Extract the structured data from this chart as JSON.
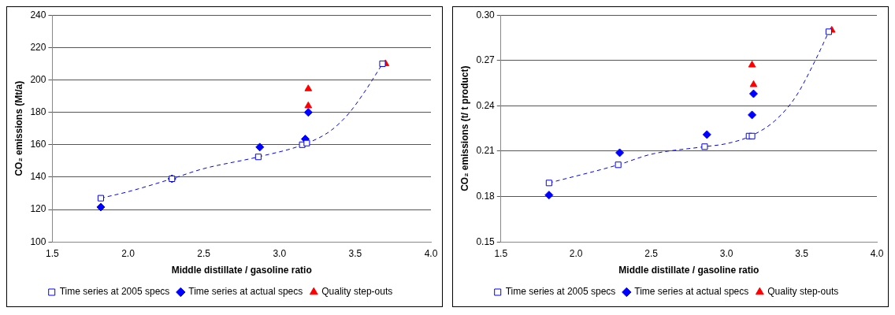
{
  "chart_data": [
    {
      "type": "scatter",
      "xlabel": "Middle distillate / gasoline ratio",
      "ylabel": "CO₂ emissions (Mt/a)",
      "xlim": [
        1.5,
        4.0
      ],
      "xticks": [
        1.5,
        {
          "value": 2,
          "label": "2.0"
        },
        2.5,
        {
          "value": 3,
          "label": "3.0"
        },
        3.5,
        {
          "value": 4,
          "label": "4.0"
        }
      ],
      "ylim": [
        100,
        240
      ],
      "yticks": [
        100,
        120,
        140,
        160,
        180,
        200,
        220,
        240
      ],
      "grid": "y",
      "legend": "bottom",
      "series": [
        {
          "name": "Time series at 2005 specs",
          "color": "#0000ff",
          "marker": "square",
          "x": [
            1.82,
            2.29,
            2.86,
            3.15,
            3.18,
            3.68
          ],
          "values": [
            127,
            139,
            152.5,
            160,
            161,
            210
          ]
        },
        {
          "name": "Time series at actual specs",
          "color": "#0000ff",
          "marker": "diamond",
          "x": [
            1.82,
            2.29,
            2.87,
            3.17,
            3.19
          ],
          "values": [
            121.5,
            139,
            158.5,
            163.5,
            180
          ]
        },
        {
          "name": "Quality step-outs",
          "color": "#ff0000",
          "marker": "triangle",
          "x": [
            3.19,
            3.19,
            3.7
          ],
          "values": [
            194.5,
            184,
            210
          ]
        },
        {
          "type": "line",
          "color": "#0000ff",
          "marker": "none",
          "line_style": "dashed",
          "x": [
            1.82,
            2.0,
            2.29,
            2.49,
            2.86,
            3.17,
            3.34,
            3.46,
            3.57,
            3.68
          ],
          "values": [
            127,
            131,
            139,
            145,
            152.5,
            160.5,
            168.8,
            179.6,
            193.8,
            210
          ]
        }
      ]
    },
    {
      "type": "scatter",
      "xlabel": "Middle distillate / gasoline ratio",
      "ylabel": "CO₂ emissions (t/ t product)",
      "xlim": [
        1.5,
        4.0
      ],
      "xticks": [
        1.5,
        {
          "value": 2,
          "label": "2.0"
        },
        2.5,
        {
          "value": 3,
          "label": "3.0"
        },
        3.5,
        {
          "value": 4,
          "label": "4.0"
        }
      ],
      "ylim": [
        0.15,
        0.3
      ],
      "yticks": [
        0.15,
        0.18,
        0.21,
        0.24,
        0.27,
        {
          "value": 0.3,
          "label": "0.30"
        }
      ],
      "grid": "y",
      "legend": "bottom",
      "series": [
        {
          "name": "Time series at 2005 specs",
          "color": "#0000ff",
          "marker": "square",
          "x": [
            1.82,
            2.28,
            2.855,
            3.15,
            3.17,
            3.68
          ],
          "values": [
            0.189,
            0.201,
            0.213,
            0.22,
            0.22,
            0.289
          ]
        },
        {
          "name": "Time series at actual specs",
          "color": "#0000ff",
          "marker": "diamond",
          "x": [
            1.82,
            2.29,
            2.87,
            3.17,
            3.18
          ],
          "values": [
            0.181,
            0.209,
            0.221,
            0.234,
            0.248
          ]
        },
        {
          "name": "Quality step-outs",
          "color": "#ff0000",
          "marker": "triangle",
          "x": [
            3.17,
            3.18,
            3.7
          ],
          "values": [
            0.267,
            0.254,
            0.29
          ]
        },
        {
          "type": "line",
          "color": "#0000ff",
          "marker": "none",
          "line_style": "dashed",
          "x": [
            1.82,
            2.28,
            2.5,
            2.855,
            3.0,
            3.16,
            3.32,
            3.46,
            3.59,
            3.68
          ],
          "values": [
            0.189,
            0.201,
            0.208,
            0.213,
            0.215,
            0.22,
            0.23,
            0.246,
            0.27,
            0.289
          ]
        }
      ]
    }
  ]
}
